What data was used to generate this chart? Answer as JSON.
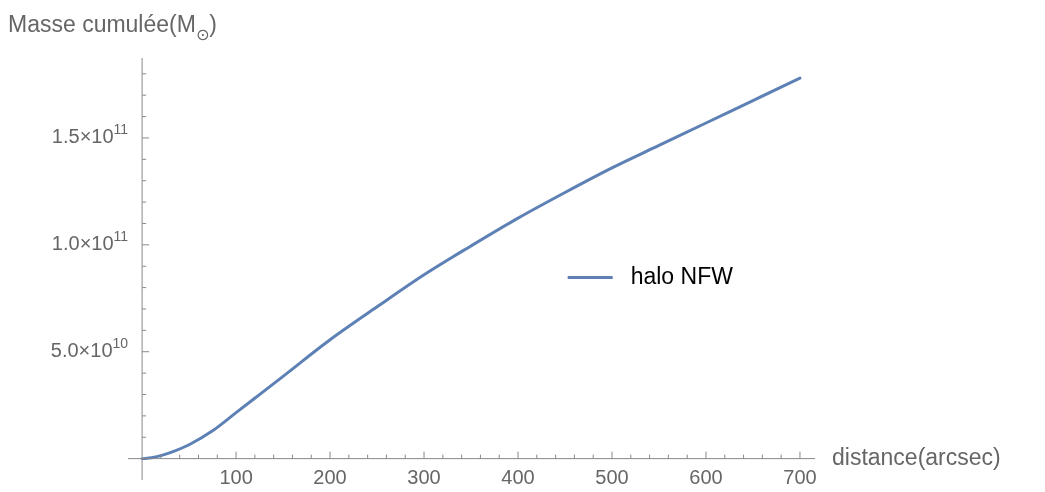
{
  "chart_data": {
    "type": "line",
    "xlabel": "distance(arcsec)",
    "ylabel": "Masse cumulée(M$_{⊙}$)",
    "x": [
      0,
      10,
      20,
      30,
      50,
      75,
      100,
      150,
      200,
      250,
      300,
      350,
      400,
      450,
      500,
      550,
      600,
      650,
      700
    ],
    "series": [
      {
        "name": "halo NFW",
        "color": "#5e81b5",
        "values": [
          0,
          400000000.0,
          1400000000.0,
          2800000000.0,
          6500000000.0,
          13000000000.0,
          21500000000.0,
          38500000000.0,
          55600000000.0,
          71000000000.0,
          86000000000.0,
          99500000000.0,
          112500000000.0,
          124500000000.0,
          136000000000.0,
          146500000000.0,
          157000000000.0,
          167500000000.0,
          178000000000.0
        ]
      }
    ],
    "xlim": [
      -15,
      716
    ],
    "ylim": [
      -10000000000.0,
      187400000000.0
    ],
    "xticks": [
      {
        "value": 20,
        "label": null
      },
      {
        "value": 40,
        "label": null
      },
      {
        "value": 60,
        "label": null
      },
      {
        "value": 80,
        "label": null
      },
      100,
      {
        "value": 120,
        "label": null
      },
      {
        "value": 140,
        "label": null
      },
      {
        "value": 160,
        "label": null
      },
      {
        "value": 180,
        "label": null
      },
      200,
      {
        "value": 220,
        "label": null
      },
      {
        "value": 240,
        "label": null
      },
      {
        "value": 260,
        "label": null
      },
      {
        "value": 280,
        "label": null
      },
      300,
      {
        "value": 320,
        "label": null
      },
      {
        "value": 340,
        "label": null
      },
      {
        "value": 360,
        "label": null
      },
      {
        "value": 380,
        "label": null
      },
      400,
      {
        "value": 420,
        "label": null
      },
      {
        "value": 440,
        "label": null
      },
      {
        "value": 460,
        "label": null
      },
      {
        "value": 480,
        "label": null
      },
      500,
      {
        "value": 520,
        "label": null
      },
      {
        "value": 540,
        "label": null
      },
      {
        "value": 560,
        "label": null
      },
      {
        "value": 580,
        "label": null
      },
      600,
      {
        "value": 620,
        "label": null
      },
      {
        "value": 640,
        "label": null
      },
      {
        "value": 660,
        "label": null
      },
      {
        "value": 680,
        "label": null
      },
      700
    ],
    "yticks": [
      {
        "value": 10000000000.0,
        "label": null
      },
      {
        "value": 20000000000.0,
        "label": null
      },
      {
        "value": 30000000000.0,
        "label": null
      },
      {
        "value": 40000000000.0,
        "label": null
      },
      {
        "value": 50000000000.0,
        "label": "5.0×10$^{10}$"
      },
      {
        "value": 60000000000.0,
        "label": null
      },
      {
        "value": 70000000000.0,
        "label": null
      },
      {
        "value": 80000000000.0,
        "label": null
      },
      {
        "value": 90000000000.0,
        "label": null
      },
      {
        "value": 100000000000.0,
        "label": "1.0×10$^{11}$"
      },
      {
        "value": 110000000000.0,
        "label": null
      },
      {
        "value": 120000000000.0,
        "label": null
      },
      {
        "value": 130000000000.0,
        "label": null
      },
      {
        "value": 140000000000.0,
        "label": null
      },
      {
        "value": 150000000000.0,
        "label": "1.5×10$^{11}$"
      },
      {
        "value": 160000000000.0,
        "label": null
      },
      {
        "value": 170000000000.0,
        "label": null
      },
      {
        "value": 180000000000.0,
        "label": null
      }
    ],
    "legend": "right",
    "grid": false,
    "marker": "none",
    "line_style": "solid"
  }
}
